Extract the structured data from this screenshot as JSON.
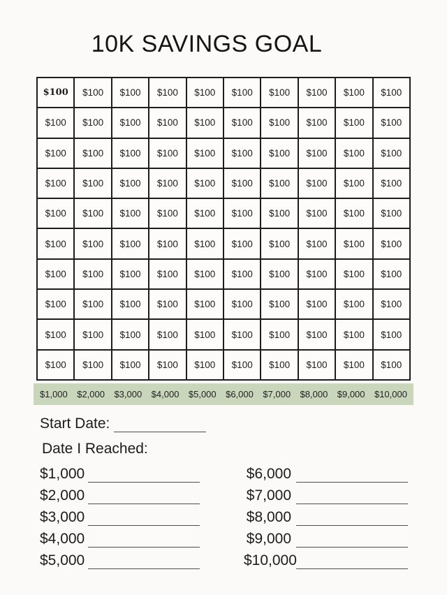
{
  "page": {
    "title": "10K SAVINGS GOAL",
    "background_color": "#fbfaf8"
  },
  "grid": {
    "rows": 10,
    "cols": 10,
    "cell_label": "$100",
    "first_cell_bold": true,
    "border_color": "#1d1d1d"
  },
  "totals": {
    "background_color": "#c9d6bb",
    "values": [
      "$1,000",
      "$2,000",
      "$3,000",
      "$4,000",
      "$5,000",
      "$6,000",
      "$7,000",
      "$8,000",
      "$9,000",
      "$10,000"
    ]
  },
  "form": {
    "start_date_label": "Start Date:",
    "date_reached_label": "Date I Reached:",
    "milestones_left": [
      "$1,000",
      "$2,000",
      "$3,000",
      "$4,000",
      "$5,000"
    ],
    "milestones_right": [
      "$6,000",
      "$7,000",
      "$8,000",
      "$9,000",
      "$10,000"
    ]
  }
}
